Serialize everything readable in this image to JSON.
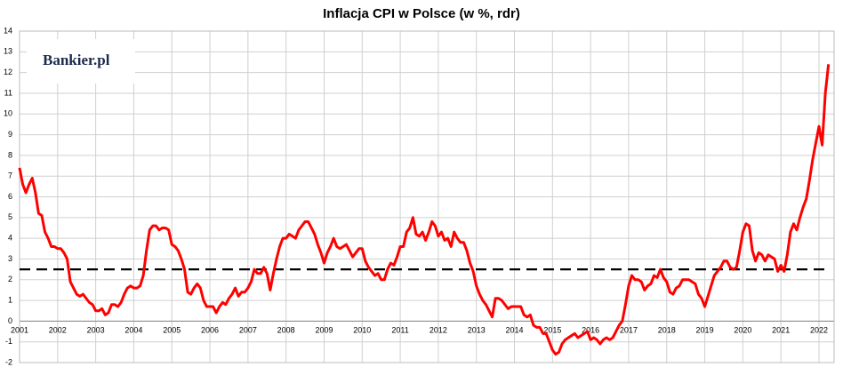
{
  "chart_data": {
    "type": "line",
    "title": "Inflacja CPI w Polsce (w %, rdr)",
    "logo": "Bankier.pl",
    "categories": [
      "2001",
      null,
      null,
      null,
      null,
      null,
      null,
      null,
      null,
      null,
      null,
      null,
      "2002",
      null,
      null,
      null,
      null,
      null,
      null,
      null,
      null,
      null,
      null,
      null,
      "2003",
      null,
      null,
      null,
      null,
      null,
      null,
      null,
      null,
      null,
      null,
      null,
      "2004",
      null,
      null,
      null,
      null,
      null,
      null,
      null,
      null,
      null,
      null,
      null,
      "2005",
      null,
      null,
      null,
      null,
      null,
      null,
      null,
      null,
      null,
      null,
      null,
      "2006",
      null,
      null,
      null,
      null,
      null,
      null,
      null,
      null,
      null,
      null,
      null,
      "2007",
      null,
      null,
      null,
      null,
      null,
      null,
      null,
      null,
      null,
      null,
      null,
      "2008",
      null,
      null,
      null,
      null,
      null,
      null,
      null,
      null,
      null,
      null,
      null,
      "2009",
      null,
      null,
      null,
      null,
      null,
      null,
      null,
      null,
      null,
      null,
      null,
      "2010",
      null,
      null,
      null,
      null,
      null,
      null,
      null,
      null,
      null,
      null,
      null,
      "2011",
      null,
      null,
      null,
      null,
      null,
      null,
      null,
      null,
      null,
      null,
      null,
      "2012",
      null,
      null,
      null,
      null,
      null,
      null,
      null,
      null,
      null,
      null,
      null,
      "2013",
      null,
      null,
      null,
      null,
      null,
      null,
      null,
      null,
      null,
      null,
      null,
      "2014",
      null,
      null,
      null,
      null,
      null,
      null,
      null,
      null,
      null,
      null,
      null,
      "2015",
      null,
      null,
      null,
      null,
      null,
      null,
      null,
      null,
      null,
      null,
      null,
      "2016",
      null,
      null,
      null,
      null,
      null,
      null,
      null,
      null,
      null,
      null,
      null,
      "2017",
      null,
      null,
      null,
      null,
      null,
      null,
      null,
      null,
      null,
      null,
      null,
      "2018",
      null,
      null,
      null,
      null,
      null,
      null,
      null,
      null,
      null,
      null,
      null,
      "2019",
      null,
      null,
      null,
      null,
      null,
      null,
      null,
      null,
      null,
      null,
      null,
      "2020",
      null,
      null,
      null,
      null,
      null,
      null,
      null,
      null,
      null,
      null,
      null,
      "2021",
      null,
      null,
      null,
      null,
      null,
      null,
      null,
      null,
      null,
      null,
      null,
      "2022",
      null,
      null,
      null
    ],
    "series": [
      {
        "name": "CPI",
        "color": "#ff0000",
        "values": [
          7.4,
          6.6,
          6.2,
          6.6,
          6.9,
          6.2,
          5.2,
          5.1,
          4.3,
          4.0,
          3.6,
          3.6,
          3.5,
          3.5,
          3.3,
          3.0,
          1.9,
          1.6,
          1.3,
          1.2,
          1.3,
          1.1,
          0.9,
          0.8,
          0.5,
          0.5,
          0.6,
          0.3,
          0.4,
          0.8,
          0.8,
          0.7,
          0.9,
          1.3,
          1.6,
          1.7,
          1.6,
          1.6,
          1.7,
          2.2,
          3.4,
          4.4,
          4.6,
          4.6,
          4.4,
          4.5,
          4.5,
          4.4,
          3.7,
          3.6,
          3.4,
          3.0,
          2.5,
          1.4,
          1.3,
          1.6,
          1.8,
          1.6,
          1.0,
          0.7,
          0.7,
          0.7,
          0.4,
          0.7,
          0.9,
          0.8,
          1.1,
          1.3,
          1.6,
          1.2,
          1.4,
          1.4,
          1.6,
          1.9,
          2.5,
          2.3,
          2.3,
          2.6,
          2.3,
          1.5,
          2.3,
          3.0,
          3.6,
          4.0,
          4.0,
          4.2,
          4.1,
          4.0,
          4.4,
          4.6,
          4.8,
          4.8,
          4.5,
          4.2,
          3.7,
          3.3,
          2.8,
          3.3,
          3.6,
          4.0,
          3.6,
          3.5,
          3.6,
          3.7,
          3.4,
          3.1,
          3.3,
          3.5,
          3.5,
          2.9,
          2.6,
          2.4,
          2.2,
          2.3,
          2.0,
          2.0,
          2.5,
          2.8,
          2.7,
          3.1,
          3.6,
          3.6,
          4.3,
          4.5,
          5.0,
          4.2,
          4.1,
          4.3,
          3.9,
          4.3,
          4.8,
          4.6,
          4.1,
          4.3,
          3.9,
          4.0,
          3.6,
          4.3,
          4.0,
          3.8,
          3.8,
          3.4,
          2.8,
          2.4,
          1.7,
          1.3,
          1.0,
          0.8,
          0.5,
          0.2,
          1.1,
          1.1,
          1.0,
          0.8,
          0.6,
          0.7,
          0.7,
          0.7,
          0.7,
          0.3,
          0.2,
          0.3,
          -0.2,
          -0.3,
          -0.3,
          -0.6,
          -0.6,
          -1.0,
          -1.4,
          -1.6,
          -1.5,
          -1.1,
          -0.9,
          -0.8,
          -0.7,
          -0.6,
          -0.8,
          -0.7,
          -0.6,
          -0.5,
          -0.9,
          -0.8,
          -0.9,
          -1.1,
          -0.9,
          -0.8,
          -0.9,
          -0.8,
          -0.5,
          -0.2,
          0.0,
          0.8,
          1.7,
          2.2,
          2.0,
          2.0,
          1.9,
          1.5,
          1.7,
          1.8,
          2.2,
          2.1,
          2.5,
          2.1,
          1.9,
          1.4,
          1.3,
          1.6,
          1.7,
          2.0,
          2.0,
          2.0,
          1.9,
          1.8,
          1.3,
          1.1,
          0.7,
          1.2,
          1.7,
          2.2,
          2.4,
          2.6,
          2.9,
          2.9,
          2.6,
          2.5,
          2.6,
          3.4,
          4.3,
          4.7,
          4.6,
          3.4,
          2.9,
          3.3,
          3.2,
          2.9,
          3.2,
          3.1,
          3.0,
          2.4,
          2.7,
          2.4,
          3.2,
          4.3,
          4.7,
          4.4,
          5.0,
          5.5,
          5.9,
          6.8,
          7.8,
          8.6,
          9.4,
          8.5,
          11.0,
          12.4
        ]
      }
    ],
    "reference_line": 2.5,
    "ylim": [
      -2,
      14
    ],
    "yticks": [
      -2,
      -1,
      0,
      1,
      2,
      3,
      4,
      5,
      6,
      7,
      8,
      9,
      10,
      11,
      12,
      13,
      14
    ],
    "grid": true
  }
}
